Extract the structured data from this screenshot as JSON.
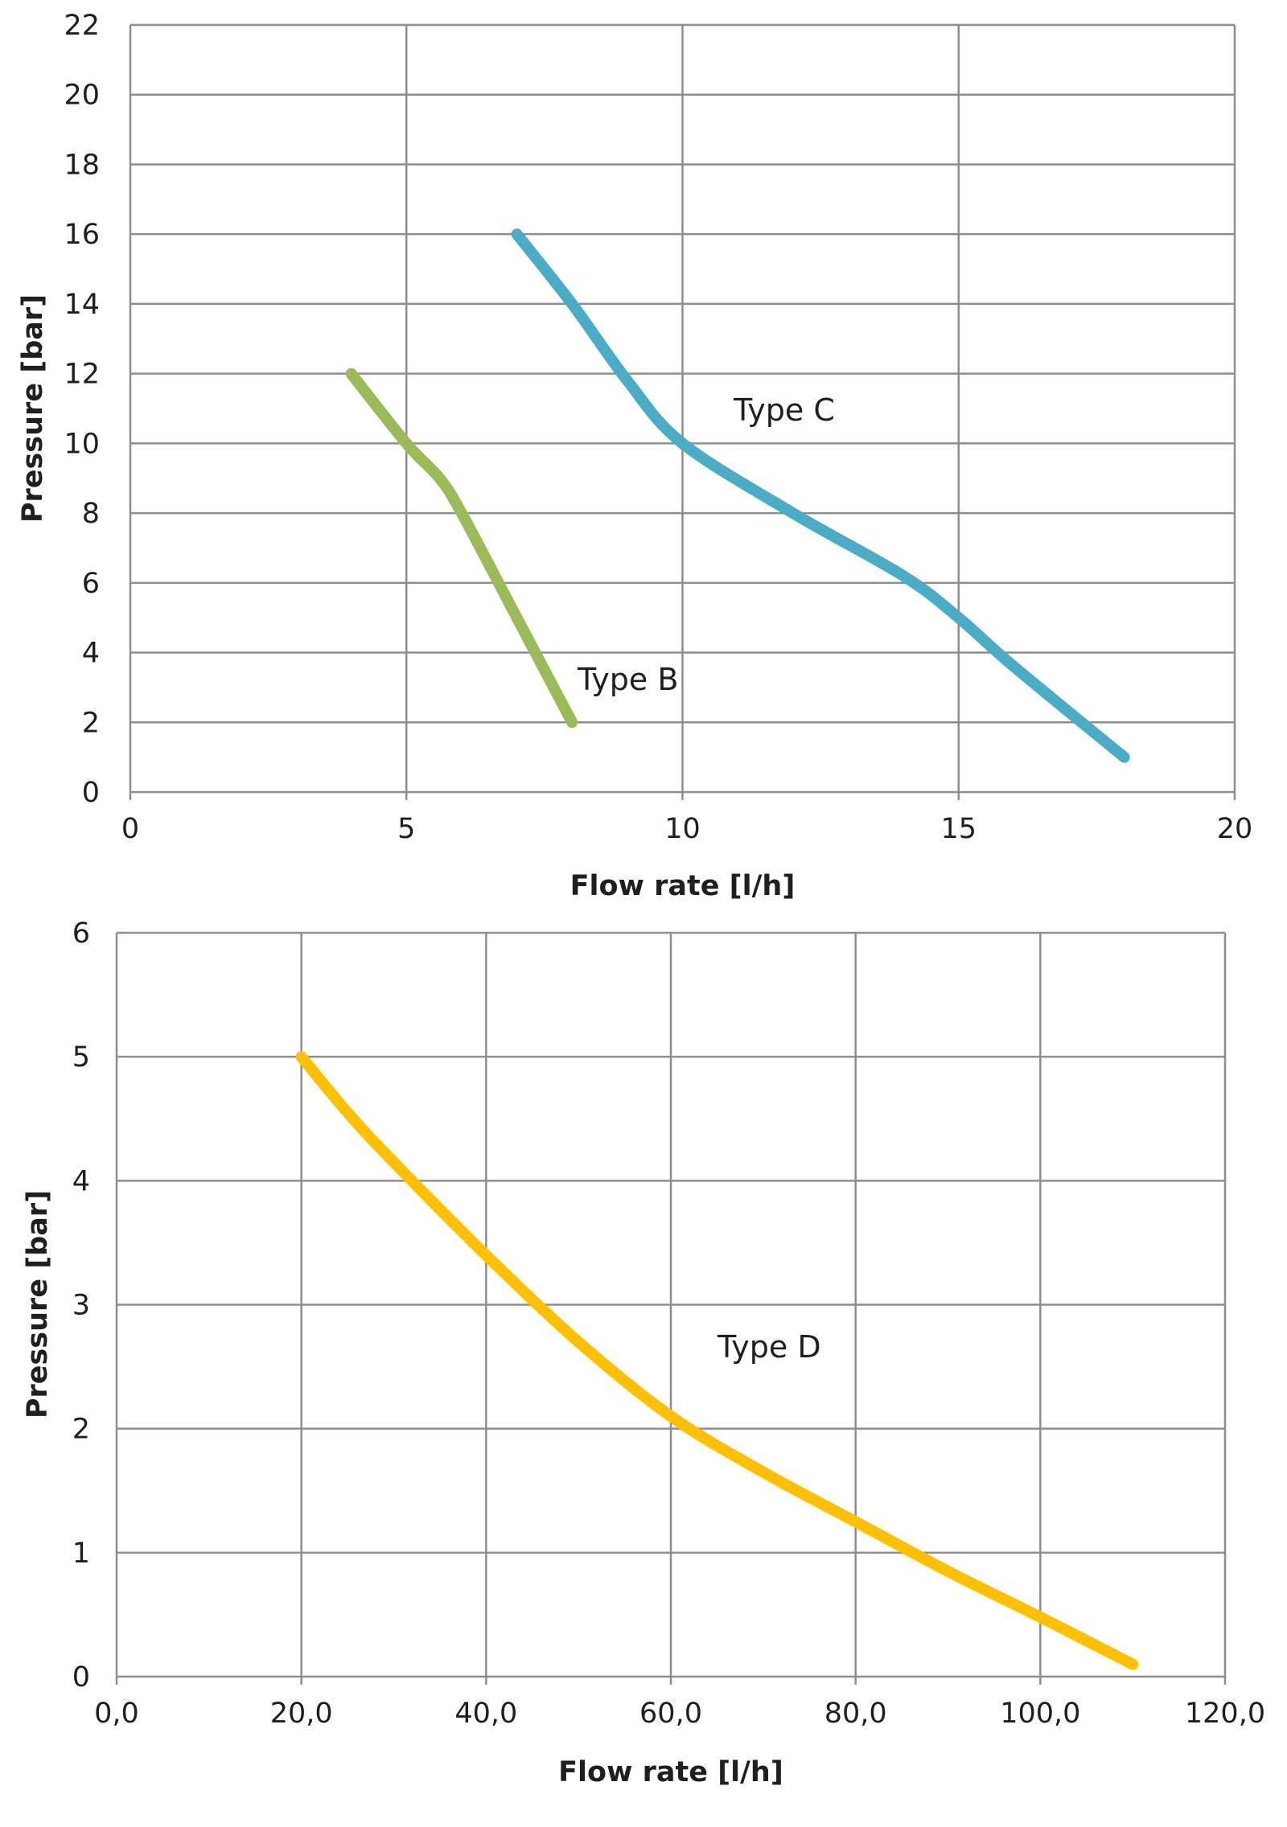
{
  "chart_data": [
    {
      "type": "line",
      "title": "",
      "xlabel": "Flow rate [l/h]",
      "ylabel": "Pressure [bar]",
      "xlim": [
        0,
        20
      ],
      "ylim": [
        0,
        22
      ],
      "x_ticks": [
        0,
        5,
        10,
        15,
        20
      ],
      "x_tick_labels": [
        "0",
        "5",
        "10",
        "15",
        "20"
      ],
      "y_ticks": [
        0,
        2,
        4,
        6,
        8,
        10,
        12,
        14,
        16,
        18,
        20,
        22
      ],
      "y_tick_labels": [
        "0",
        "2",
        "4",
        "6",
        "8",
        "10",
        "12",
        "14",
        "16",
        "18",
        "20",
        "22"
      ],
      "grid": true,
      "legend": "none",
      "series": [
        {
          "name": "Type B",
          "color": "#9bbb59",
          "x": [
            4,
            5,
            5.6,
            6,
            7,
            8
          ],
          "y": [
            12,
            10,
            9,
            8,
            5,
            2
          ]
        },
        {
          "name": "Type C",
          "color": "#4bacc6",
          "x": [
            7,
            8,
            9,
            10,
            12,
            14,
            15,
            16,
            18
          ],
          "y": [
            16,
            14,
            11.8,
            10,
            8,
            6.2,
            5,
            3.6,
            1
          ]
        }
      ]
    },
    {
      "type": "line",
      "title": "",
      "xlabel": "Flow rate [l/h]",
      "ylabel": "Pressure [bar]",
      "xlim": [
        0,
        120
      ],
      "ylim": [
        0,
        6
      ],
      "x_ticks": [
        0,
        20,
        40,
        60,
        80,
        100,
        120
      ],
      "x_tick_labels": [
        "0,0",
        "20,0",
        "40,0",
        "60,0",
        "80,0",
        "100,0",
        "120,0"
      ],
      "y_ticks": [
        0,
        1,
        2,
        3,
        4,
        5,
        6
      ],
      "y_tick_labels": [
        "0",
        "1",
        "2",
        "3",
        "4",
        "5",
        "6"
      ],
      "grid": true,
      "legend": "none",
      "series": [
        {
          "name": "Type D",
          "color": "#ffc000",
          "x": [
            20,
            25,
            30,
            40,
            50,
            60,
            70,
            80,
            90,
            100,
            110
          ],
          "y": [
            5,
            4.55,
            4.15,
            3.4,
            2.7,
            2.1,
            1.65,
            1.25,
            0.85,
            0.48,
            0.1
          ]
        }
      ]
    }
  ]
}
